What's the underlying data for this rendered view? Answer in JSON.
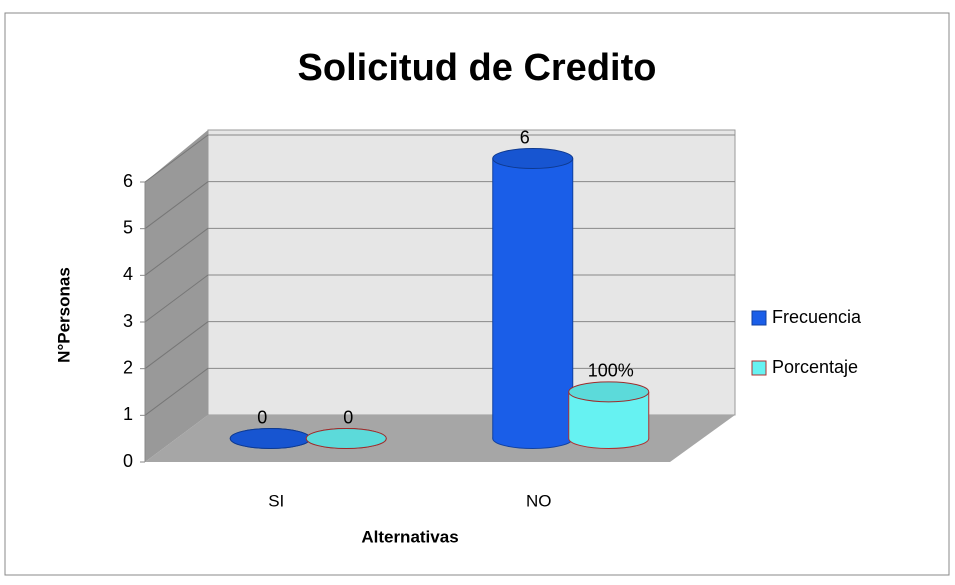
{
  "chart_data": {
    "type": "bar",
    "title": "Solicitud de Credito",
    "y_label": "N°Personas",
    "x_label": "Alternativas",
    "categories": [
      "SI",
      "NO"
    ],
    "series": [
      {
        "name": "Frecuencia",
        "color": "#1a5ee8",
        "values": [
          0,
          6
        ],
        "value_labels": [
          "0",
          "6"
        ]
      },
      {
        "name": "Porcentaje",
        "color": "#66f2f2",
        "values": [
          0,
          1
        ],
        "value_labels": [
          "0",
          "100%"
        ]
      }
    ],
    "ylim": [
      0,
      6
    ],
    "yticks": [
      0,
      1,
      2,
      3,
      4,
      5,
      6
    ],
    "grid": true,
    "legend": "right"
  }
}
